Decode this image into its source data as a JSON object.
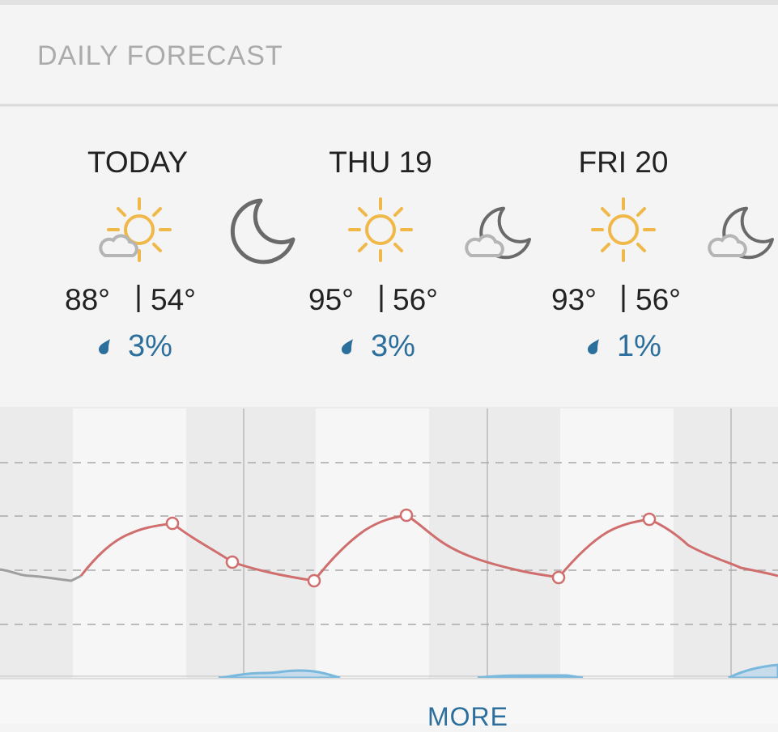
{
  "header": {
    "title": "DAILY FORECAST"
  },
  "days": [
    {
      "label": "TODAY",
      "high": "88°",
      "low": "54°",
      "precip": "3%"
    },
    {
      "label": "THU 19",
      "high": "95°",
      "low": "56°",
      "precip": "3%"
    },
    {
      "label": "FRI 20",
      "high": "93°",
      "low": "56°",
      "precip": "1%"
    }
  ],
  "footer": {
    "button": "MORE"
  }
}
